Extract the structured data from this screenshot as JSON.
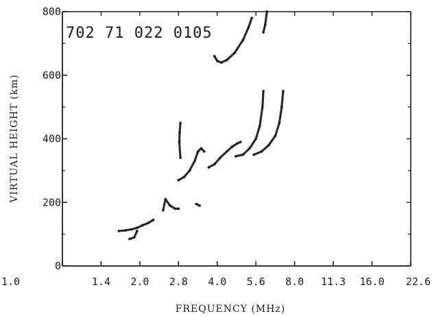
{
  "chart_data": {
    "type": "scatter",
    "stamp": "702 71 022 0105",
    "xlabel": "FREQUENCY (MHz)",
    "ylabel": "VIRTUAL HEIGHT (km)",
    "x_ticks": [
      "1.0",
      "1.4",
      "2.0",
      "2.8",
      "4.0",
      "5.6",
      "8.0",
      "11.3",
      "16.0",
      "22.6"
    ],
    "y_ticks": [
      0,
      200,
      400,
      600,
      800
    ],
    "xlim": [
      1.0,
      22.6
    ],
    "ylim": [
      0,
      800
    ],
    "x_scale": "log",
    "grid": false,
    "series": [
      {
        "values": [
          {
            "x": 1.65,
            "y": 110
          },
          {
            "x": 1.75,
            "y": 112
          },
          {
            "x": 1.85,
            "y": 115
          },
          {
            "x": 1.95,
            "y": 120
          },
          {
            "x": 2.05,
            "y": 128
          },
          {
            "x": 2.15,
            "y": 135
          },
          {
            "x": 2.25,
            "y": 145
          }
        ]
      },
      {
        "values": [
          {
            "x": 1.82,
            "y": 85
          },
          {
            "x": 1.9,
            "y": 90
          },
          {
            "x": 1.95,
            "y": 110
          }
        ]
      },
      {
        "values": [
          {
            "x": 2.45,
            "y": 175
          },
          {
            "x": 2.5,
            "y": 210
          },
          {
            "x": 2.6,
            "y": 190
          },
          {
            "x": 2.72,
            "y": 180
          },
          {
            "x": 2.8,
            "y": 180
          }
        ]
      },
      {
        "values": [
          {
            "x": 2.8,
            "y": 270
          },
          {
            "x": 2.95,
            "y": 280
          },
          {
            "x": 3.1,
            "y": 300
          },
          {
            "x": 3.25,
            "y": 330
          },
          {
            "x": 3.35,
            "y": 360
          },
          {
            "x": 3.45,
            "y": 370
          },
          {
            "x": 3.55,
            "y": 360
          }
        ]
      },
      {
        "values": [
          {
            "x": 2.85,
            "y": 450
          },
          {
            "x": 2.83,
            "y": 420
          },
          {
            "x": 2.82,
            "y": 390
          },
          {
            "x": 2.85,
            "y": 340
          }
        ]
      },
      {
        "values": [
          {
            "x": 3.3,
            "y": 195
          },
          {
            "x": 3.4,
            "y": 190
          }
        ]
      },
      {
        "values": [
          {
            "x": 3.7,
            "y": 310
          },
          {
            "x": 3.9,
            "y": 320
          },
          {
            "x": 4.1,
            "y": 340
          },
          {
            "x": 4.35,
            "y": 360
          },
          {
            "x": 4.55,
            "y": 375
          },
          {
            "x": 4.75,
            "y": 385
          },
          {
            "x": 4.9,
            "y": 390
          }
        ]
      },
      {
        "values": [
          {
            "x": 4.7,
            "y": 345
          },
          {
            "x": 5.0,
            "y": 350
          },
          {
            "x": 5.3,
            "y": 370
          },
          {
            "x": 5.6,
            "y": 400
          },
          {
            "x": 5.8,
            "y": 440
          },
          {
            "x": 5.95,
            "y": 500
          },
          {
            "x": 6.0,
            "y": 550
          }
        ]
      },
      {
        "values": [
          {
            "x": 5.5,
            "y": 350
          },
          {
            "x": 5.9,
            "y": 360
          },
          {
            "x": 6.3,
            "y": 380
          },
          {
            "x": 6.7,
            "y": 410
          },
          {
            "x": 6.95,
            "y": 450
          },
          {
            "x": 7.1,
            "y": 500
          },
          {
            "x": 7.2,
            "y": 550
          }
        ]
      },
      {
        "values": [
          {
            "x": 3.9,
            "y": 660
          },
          {
            "x": 4.0,
            "y": 645
          },
          {
            "x": 4.15,
            "y": 640
          },
          {
            "x": 4.35,
            "y": 648
          },
          {
            "x": 4.65,
            "y": 670
          },
          {
            "x": 5.0,
            "y": 710
          },
          {
            "x": 5.25,
            "y": 750
          },
          {
            "x": 5.4,
            "y": 780
          }
        ]
      },
      {
        "values": [
          {
            "x": 6.0,
            "y": 735
          },
          {
            "x": 6.1,
            "y": 760
          },
          {
            "x": 6.2,
            "y": 800
          }
        ]
      }
    ]
  }
}
